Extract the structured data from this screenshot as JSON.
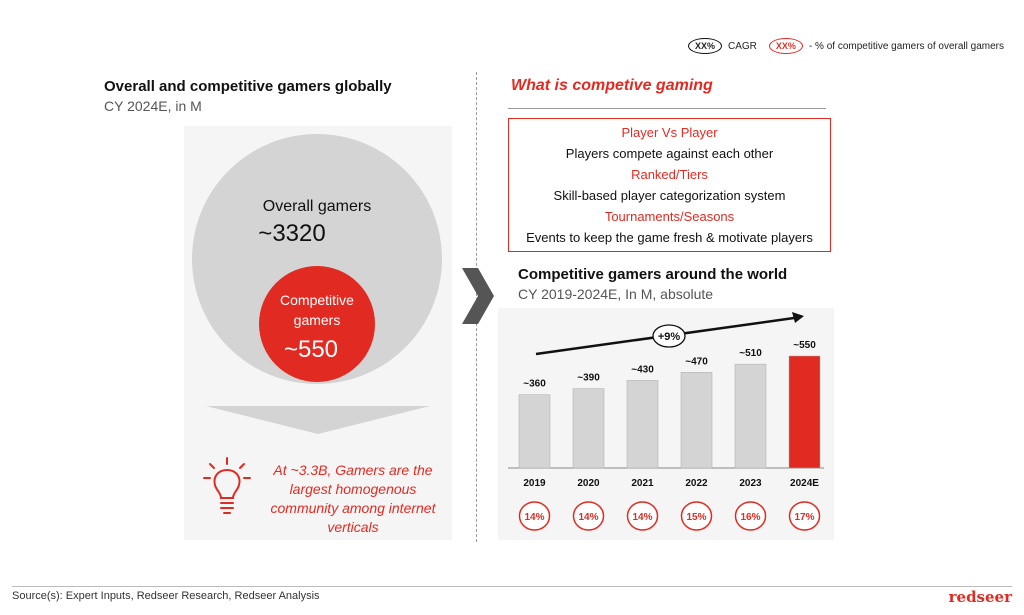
{
  "legend": {
    "cagr_pill": "XX%",
    "cagr_label": "CAGR",
    "pct_pill": "XX%",
    "pct_label": "- % of competitive gamers of overall gamers"
  },
  "left": {
    "title": "Overall and competitive gamers globally",
    "subtitle": "CY 2024E, in M",
    "overall_label": "Overall gamers",
    "overall_value": "~3320",
    "competitive_label_1": "Competitive",
    "competitive_label_2": "gamers",
    "competitive_value": "~550",
    "insight": [
      "At ~3.3B, Gamers are the",
      "largest homogenous",
      "community among internet",
      "verticals"
    ]
  },
  "definition": {
    "title": "What is competive gaming",
    "items": [
      {
        "head": "Player Vs Player",
        "text": "Players compete against each other"
      },
      {
        "head": "Ranked/Tiers",
        "text": "Skill-based player categorization system"
      },
      {
        "head": "Tournaments/Seasons",
        "text": "Events to keep the game fresh & motivate players"
      }
    ]
  },
  "chart_data": {
    "type": "bar",
    "title": "Competitive gamers around the world",
    "subtitle": "CY 2019-2024E, In M, absolute",
    "categories": [
      "2019",
      "2020",
      "2021",
      "2022",
      "2023",
      "2024E"
    ],
    "values": [
      360,
      390,
      430,
      470,
      510,
      550
    ],
    "value_labels": [
      "~360",
      "~390",
      "~430",
      "~470",
      "~510",
      "~550"
    ],
    "share_labels": [
      "14%",
      "14%",
      "14%",
      "15%",
      "16%",
      "17%"
    ],
    "cagr_label": "+9%",
    "colors": {
      "default": "#d4d4d4",
      "highlight": "#e12b22"
    },
    "highlight_index": 5
  },
  "footer": {
    "source": "Source(s): Expert Inputs, Redseer Research, Redseer Analysis",
    "logo": "redseer"
  },
  "colors": {
    "accent": "#e12b22",
    "grey": "#d4d4d4"
  }
}
